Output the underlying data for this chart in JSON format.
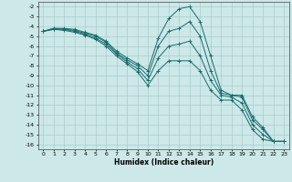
{
  "xlabel": "Humidex (Indice chaleur)",
  "background_color": "#cce8e8",
  "grid_color": "#aacccc",
  "line_color": "#1a6b6b",
  "x_values": [
    0,
    1,
    2,
    3,
    4,
    5,
    6,
    7,
    8,
    9,
    10,
    11,
    12,
    13,
    14,
    15,
    16,
    17,
    18,
    19,
    20,
    21,
    22,
    23
  ],
  "lines": [
    [
      -4.5,
      -4.2,
      -4.2,
      -4.3,
      -4.6,
      -4.9,
      -5.5,
      -6.5,
      -7.2,
      -7.8,
      -8.5,
      -5.2,
      -3.2,
      -2.2,
      -2.0,
      -3.5,
      -7.0,
      -10.5,
      -11.0,
      -11.0,
      -13.2,
      -14.3,
      -15.7,
      -15.7
    ],
    [
      -4.5,
      -4.2,
      -4.3,
      -4.4,
      -4.7,
      -5.0,
      -5.6,
      -6.7,
      -7.4,
      -8.0,
      -9.0,
      -6.0,
      -4.5,
      -4.2,
      -3.5,
      -5.0,
      -8.5,
      -10.8,
      -11.0,
      -11.2,
      -13.5,
      -14.5,
      -15.7,
      -15.7
    ],
    [
      -4.5,
      -4.3,
      -4.3,
      -4.5,
      -4.8,
      -5.2,
      -5.8,
      -6.8,
      -7.6,
      -8.3,
      -9.5,
      -7.2,
      -6.0,
      -5.8,
      -5.5,
      -7.0,
      -9.5,
      -11.0,
      -11.2,
      -11.8,
      -14.0,
      -15.0,
      -15.7,
      -15.7
    ],
    [
      -4.5,
      -4.3,
      -4.4,
      -4.6,
      -4.9,
      -5.3,
      -6.0,
      -7.0,
      -7.8,
      -8.6,
      -10.0,
      -8.5,
      -7.5,
      -7.5,
      -7.5,
      -8.5,
      -10.5,
      -11.5,
      -11.5,
      -12.5,
      -14.5,
      -15.5,
      -15.7,
      -15.7
    ]
  ],
  "ylim": [
    -16.5,
    -1.5
  ],
  "xlim": [
    -0.5,
    23.5
  ],
  "yticks": [
    -2,
    -3,
    -4,
    -5,
    -6,
    -7,
    -8,
    -9,
    -10,
    -11,
    -12,
    -13,
    -14,
    -15,
    -16
  ],
  "xticks": [
    0,
    1,
    2,
    3,
    4,
    5,
    6,
    7,
    8,
    9,
    10,
    11,
    12,
    13,
    14,
    15,
    16,
    17,
    18,
    19,
    20,
    21,
    22,
    23
  ],
  "figsize": [
    3.2,
    2.0
  ],
  "dpi": 100
}
